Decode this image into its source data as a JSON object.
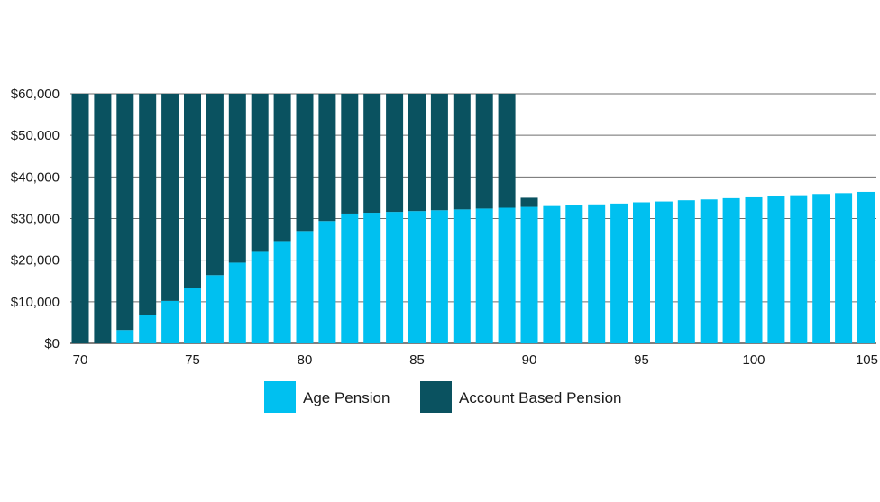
{
  "chart_data": {
    "type": "bar",
    "stacked": true,
    "title": "",
    "xlabel": "",
    "ylabel": "",
    "ylim": [
      0,
      60000
    ],
    "grid": true,
    "legend_position": "bottom-center",
    "y_ticks": [
      {
        "value": 0,
        "label": "$0"
      },
      {
        "value": 10000,
        "label": "$10,000"
      },
      {
        "value": 20000,
        "label": "$20,000"
      },
      {
        "value": 30000,
        "label": "$30,000"
      },
      {
        "value": 40000,
        "label": "$40,000"
      },
      {
        "value": 50000,
        "label": "$50,000"
      },
      {
        "value": 60000,
        "label": "$60,000"
      }
    ],
    "x_ticks": [
      {
        "value": 70,
        "label": "70"
      },
      {
        "value": 75,
        "label": "75"
      },
      {
        "value": 80,
        "label": "80"
      },
      {
        "value": 85,
        "label": "85"
      },
      {
        "value": 90,
        "label": "90"
      },
      {
        "value": 95,
        "label": "95"
      },
      {
        "value": 100,
        "label": "100"
      },
      {
        "value": 105,
        "label": "105"
      }
    ],
    "categories": [
      70,
      71,
      72,
      73,
      74,
      75,
      76,
      77,
      78,
      79,
      80,
      81,
      82,
      83,
      84,
      85,
      86,
      87,
      88,
      89,
      90,
      91,
      92,
      93,
      94,
      95,
      96,
      97,
      98,
      99,
      100,
      101,
      102,
      103,
      104,
      105
    ],
    "series": [
      {
        "name": "Age Pension",
        "color": "#00C0F0",
        "values": [
          0,
          0,
          3200,
          6800,
          10200,
          13300,
          16400,
          19400,
          22000,
          24600,
          27000,
          29400,
          31200,
          31400,
          31600,
          31800,
          32000,
          32200,
          32400,
          32600,
          32800,
          33000,
          33200,
          33400,
          33600,
          33900,
          34100,
          34400,
          34600,
          34900,
          35100,
          35400,
          35600,
          35900,
          36100,
          36400
        ]
      },
      {
        "name": "Account Based Pension",
        "color": "#0A5260",
        "values": [
          60000,
          60000,
          56800,
          53200,
          49800,
          46700,
          43600,
          40600,
          38000,
          35400,
          33000,
          30600,
          28800,
          28600,
          28400,
          28200,
          28000,
          27800,
          27600,
          27400,
          2200,
          0,
          0,
          0,
          0,
          0,
          0,
          0,
          0,
          0,
          0,
          0,
          0,
          0,
          0,
          0
        ]
      }
    ],
    "legend": [
      {
        "label": "Age Pension",
        "color": "#00C0F0"
      },
      {
        "label": "Account Based Pension",
        "color": "#0A5260"
      }
    ]
  }
}
